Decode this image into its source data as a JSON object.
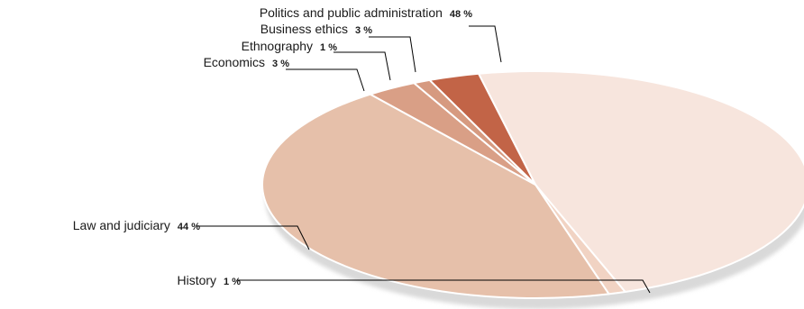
{
  "chart_data": {
    "type": "pie",
    "style": "3d-tilted",
    "title": "",
    "categories": [
      "Politics and public administration",
      "History",
      "Law and judiciary",
      "Economics",
      "Ethnography",
      "Business ethics"
    ],
    "values": [
      48,
      1,
      44,
      3,
      1,
      3
    ],
    "value_labels": [
      "48 %",
      "1 %",
      "44 %",
      "3 %",
      "1 %",
      "3 %"
    ],
    "colors": [
      "#f7e5dd",
      "#f1d3c3",
      "#e6c0aa",
      "#d99f86",
      "#d69a80",
      "#c26447"
    ],
    "legend": "none"
  }
}
